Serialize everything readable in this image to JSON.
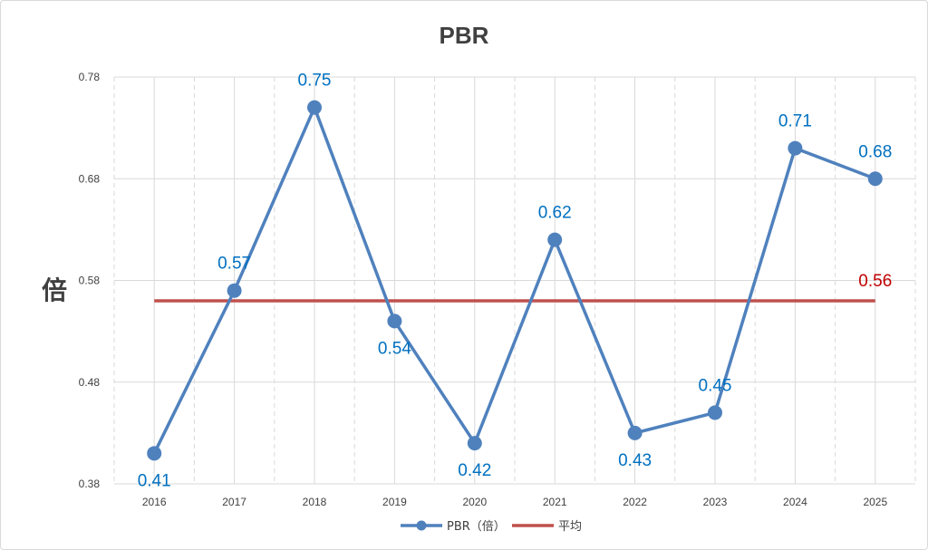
{
  "colors": {
    "series": "#4f81bd",
    "average": "#c0504d",
    "data_label": "#0070c0",
    "average_label": "#c00000",
    "grid": "#d9d9d9",
    "axis_text": "#404040"
  },
  "chart_data": {
    "type": "line",
    "title": "PBR",
    "xlabel": "",
    "ylabel": "倍",
    "categories": [
      "2016",
      "2017",
      "2018",
      "2019",
      "2020",
      "2021",
      "2022",
      "2023",
      "2024",
      "2025"
    ],
    "y_ticks": [
      "0.38",
      "0.48",
      "0.58",
      "0.68",
      "0.78"
    ],
    "ylim": [
      0.38,
      0.78
    ],
    "grid": true,
    "legend_position": "bottom",
    "series": [
      {
        "name": "PBR（倍）",
        "values": [
          0.41,
          0.57,
          0.75,
          0.54,
          0.42,
          0.62,
          0.43,
          0.45,
          0.71,
          0.68
        ],
        "marker": "circle"
      },
      {
        "name": "平均",
        "values": [
          0.56,
          0.56,
          0.56,
          0.56,
          0.56,
          0.56,
          0.56,
          0.56,
          0.56,
          0.56
        ]
      }
    ],
    "data_labels": [
      "0.41",
      "0.57",
      "0.75",
      "0.54",
      "0.42",
      "0.62",
      "0.43",
      "0.45",
      "0.71",
      "0.68"
    ],
    "average_label": "0.56"
  }
}
